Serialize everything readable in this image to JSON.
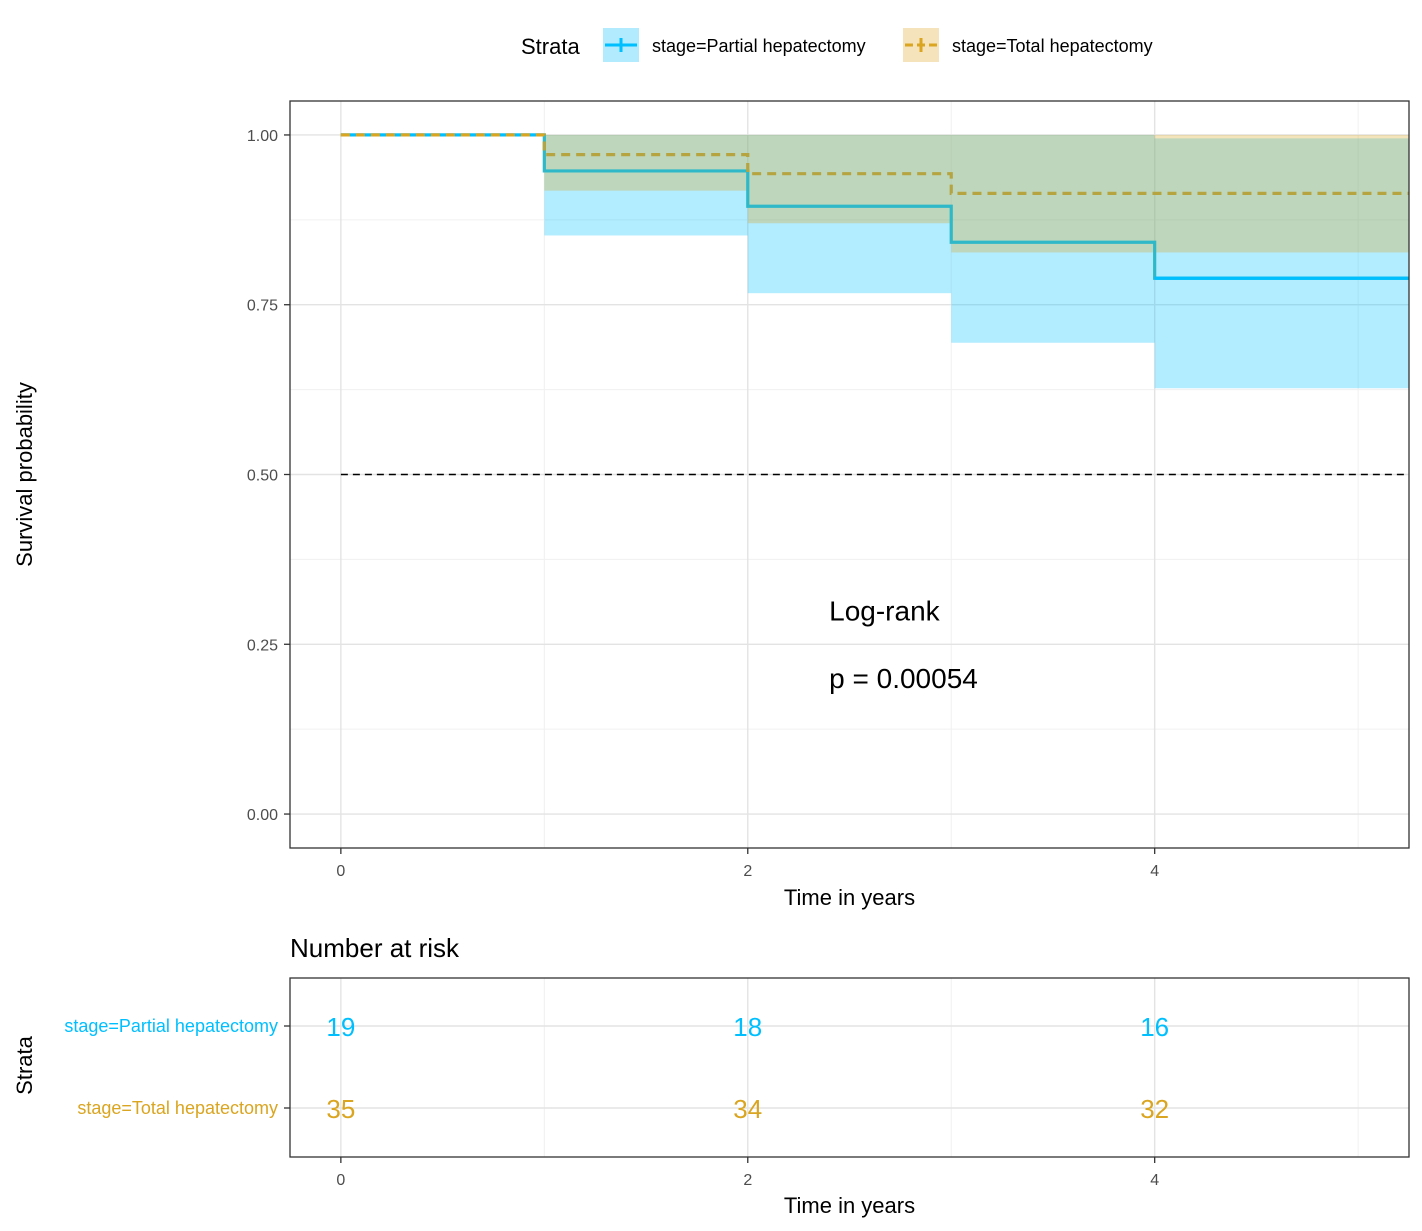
{
  "chart_data": {
    "type": "line",
    "subtype": "kaplan-meier",
    "xlabel": "Time in years",
    "ylabel": "Survival probability",
    "xlim": [
      -0.25,
      5.25
    ],
    "ylim": [
      -0.05,
      1.05
    ],
    "x_ticks": [
      "0",
      "2",
      "4"
    ],
    "y_ticks": [
      "0.00",
      "0.25",
      "0.50",
      "0.75",
      "1.00"
    ],
    "grid": true,
    "median_line": 0.5,
    "legend": {
      "title": "Strata",
      "position": "top",
      "entries": [
        "stage=Partial hepatectomy",
        "stage=Total hepatectomy"
      ]
    },
    "series": [
      {
        "name": "stage=Partial hepatectomy",
        "color": "#00BFFF",
        "line_style": "solid",
        "steps": [
          {
            "x": 0,
            "y": 1.0,
            "lower": 1.0,
            "upper": 1.0
          },
          {
            "x": 1,
            "y": 0.947,
            "lower": 0.852,
            "upper": 1.0
          },
          {
            "x": 2,
            "y": 0.895,
            "lower": 0.767,
            "upper": 1.0
          },
          {
            "x": 3,
            "y": 0.842,
            "lower": 0.694,
            "upper": 1.0
          },
          {
            "x": 4,
            "y": 0.789,
            "lower": 0.627,
            "upper": 0.995
          }
        ]
      },
      {
        "name": "stage=Total hepatectomy",
        "color": "#DAA520",
        "line_style": "dashed",
        "steps": [
          {
            "x": 0,
            "y": 1.0,
            "lower": 1.0,
            "upper": 1.0
          },
          {
            "x": 1,
            "y": 0.971,
            "lower": 0.918,
            "upper": 1.0
          },
          {
            "x": 2,
            "y": 0.943,
            "lower": 0.87,
            "upper": 1.0
          },
          {
            "x": 3,
            "y": 0.914,
            "lower": 0.827,
            "upper": 1.0
          },
          {
            "x": 4,
            "y": 0.914,
            "lower": 0.827,
            "upper": 1.0
          }
        ]
      }
    ],
    "x_end": 5.25,
    "annotation": {
      "line1": "Log-rank",
      "line2": "p = 0.00054",
      "x": 2.4,
      "y_line1": 0.3,
      "y_line2": 0.2
    },
    "risk_table": {
      "title": "Number at risk",
      "ylabel": "Strata",
      "xlabel": "Time in years",
      "times": [
        0,
        2,
        4
      ],
      "rows": [
        {
          "label": "stage=Partial hepatectomy",
          "color": "#00BFFF",
          "values": [
            "19",
            "18",
            "16"
          ]
        },
        {
          "label": "stage=Total hepatectomy",
          "color": "#DAA520",
          "values": [
            "35",
            "34",
            "32"
          ]
        }
      ]
    }
  }
}
